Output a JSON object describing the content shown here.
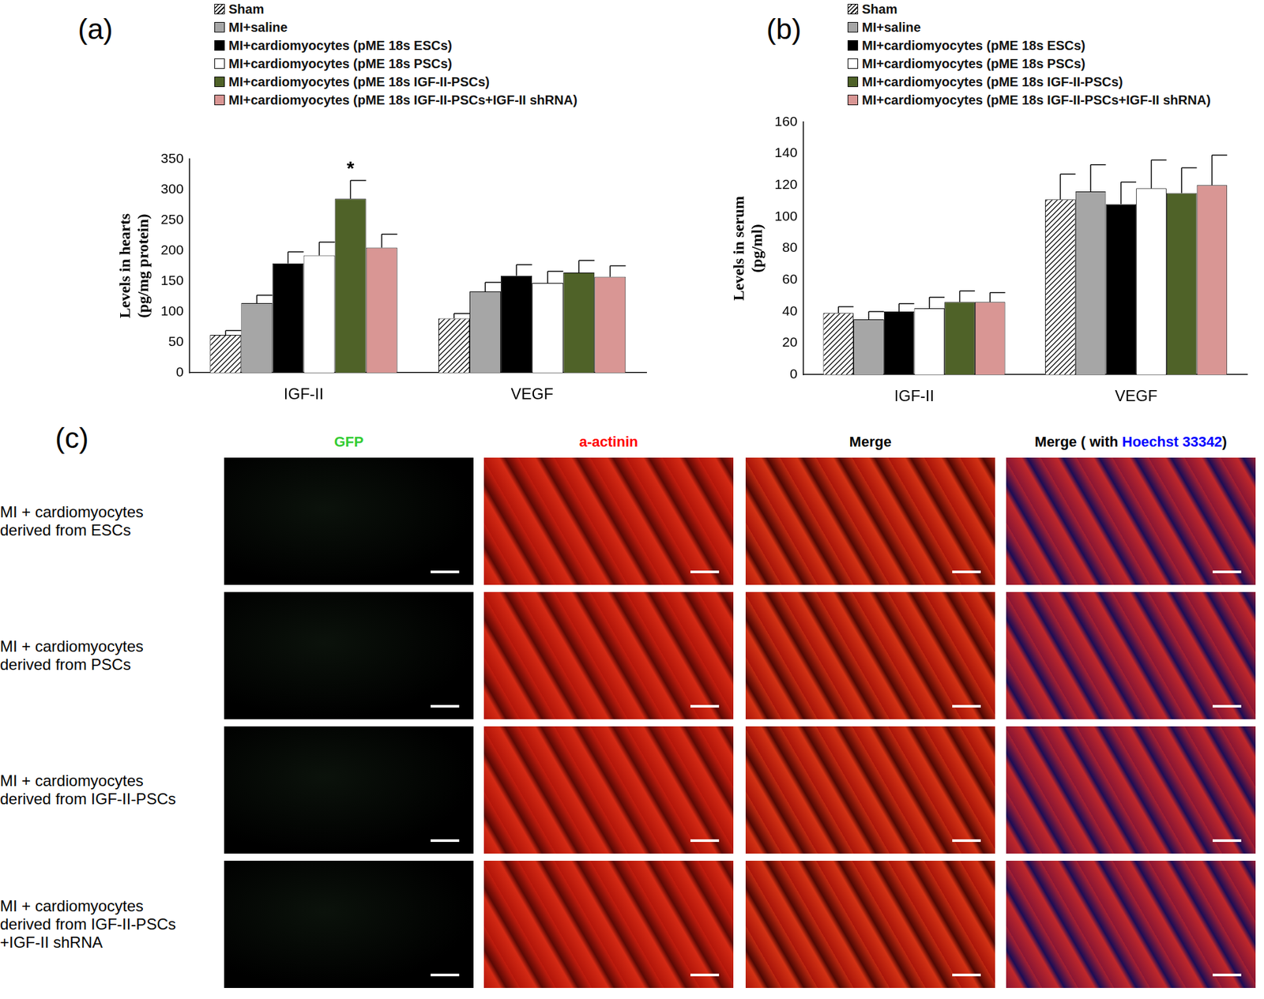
{
  "chart_data": [
    {
      "type": "bar",
      "panel_label": "(a)",
      "y_label": [
        "Levels in hearts",
        "(pg/mg protein)"
      ],
      "categories": [
        "IGF-II",
        "VEGF"
      ],
      "series": [
        {
          "name": "Sham",
          "color": "#ffffff",
          "line_style": "hatched",
          "values": [
            62,
            89
          ],
          "errors": [
            7,
            8
          ]
        },
        {
          "name": "MI+saline",
          "color": "#a6a6a6",
          "values": [
            114,
            133
          ],
          "errors": [
            13,
            15
          ]
        },
        {
          "name": "MI+cardiomyocytes (pME 18s ESCs)",
          "color": "#000000",
          "values": [
            179,
            159
          ],
          "errors": [
            19,
            18
          ]
        },
        {
          "name": "MI+cardiomyocytes (pME 18s PSCs)",
          "color": "#ffffff",
          "values": [
            192,
            147
          ],
          "errors": [
            22,
            19
          ]
        },
        {
          "name": "MI+cardiomyocytes (pME 18s IGF-II-PSCs)",
          "color": "#4f6228",
          "values": [
            285,
            164
          ],
          "errors": [
            30,
            20
          ]
        },
        {
          "name": "MI+cardiomyocytes (pME 18s IGF-II-PSCs+IGF-II shRNA)",
          "color": "#d99694",
          "values": [
            205,
            157
          ],
          "errors": [
            22,
            18
          ]
        }
      ],
      "annotations": [
        {
          "text": "*",
          "series": "MI+cardiomyocytes (pME 18s IGF-II-PSCs)",
          "category": "IGF-II"
        }
      ],
      "ylim": [
        0,
        350
      ],
      "yticks": [
        0,
        50,
        100,
        150,
        200,
        250,
        300,
        350
      ],
      "grid": false,
      "legend": "top"
    },
    {
      "type": "bar",
      "panel_label": "(b)",
      "y_label": [
        "Levels in serum",
        "(pg/ml)"
      ],
      "categories": [
        "IGF-II",
        "VEGF"
      ],
      "series": [
        {
          "name": "Sham",
          "color": "#ffffff",
          "line_style": "hatched",
          "values": [
            39,
            111
          ],
          "errors": [
            4,
            16
          ]
        },
        {
          "name": "MI+saline",
          "color": "#a6a6a6",
          "values": [
            35,
            116
          ],
          "errors": [
            5,
            17
          ]
        },
        {
          "name": "MI+cardiomyocytes (pME 18s ESCs)",
          "color": "#000000",
          "values": [
            40,
            108
          ],
          "errors": [
            5,
            14
          ]
        },
        {
          "name": "MI+cardiomyocytes (pME 18s PSCs)",
          "color": "#ffffff",
          "values": [
            42,
            118
          ],
          "errors": [
            7,
            18
          ]
        },
        {
          "name": "MI+cardiomyocytes (pME 18s IGF-II-PSCs)",
          "color": "#4f6228",
          "values": [
            46,
            115
          ],
          "errors": [
            7,
            16
          ]
        },
        {
          "name": "MI+cardiomyocytes (pME 18s IGF-II-PSCs+IGF-II shRNA)",
          "color": "#d99694",
          "values": [
            46,
            120
          ],
          "errors": [
            6,
            19
          ]
        }
      ],
      "ylim": [
        0,
        160
      ],
      "yticks": [
        0,
        20,
        40,
        60,
        80,
        100,
        120,
        140,
        160
      ],
      "grid": false,
      "legend": "top"
    }
  ],
  "panel_c": {
    "label": "(c)",
    "columns": [
      [
        {
          "text": "GFP",
          "color": "#33cc33"
        }
      ],
      [
        {
          "text": "a-actinin",
          "color": "#ff0000"
        }
      ],
      [
        {
          "text": "Merge",
          "color": "#000000"
        }
      ],
      [
        {
          "text": "Merge ( with ",
          "color": "#000000"
        },
        {
          "text": "Hoechst 33342",
          "color": "#0000ff"
        },
        {
          "text": ")",
          "color": "#000000"
        }
      ]
    ],
    "rows": [
      [
        "MI + cardiomyocytes",
        "derived from ESCs"
      ],
      [
        "MI + cardiomyocytes",
        "derived from PSCs"
      ],
      [
        "MI + cardiomyocytes",
        "derived from IGF-II-PSCs"
      ],
      [
        "MI + cardiomyocytes",
        "derived from IGF-II-PSCs",
        "+IGF-II shRNA"
      ]
    ]
  }
}
